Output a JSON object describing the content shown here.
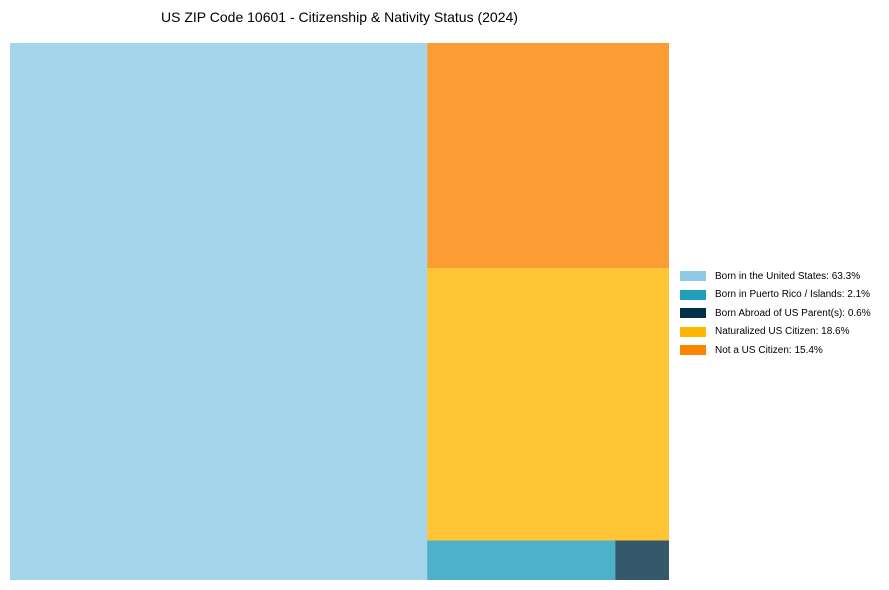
{
  "chart_data": {
    "type": "treemap",
    "title": "US ZIP Code 10601 - Citizenship & Nativity Status (2024)",
    "unit": "%",
    "items": [
      {
        "label": "Born in the United States",
        "value": 63.3,
        "color": "#8ecae6",
        "legend": "Born in the United States: 63.3%"
      },
      {
        "label": "Born in Puerto Rico / Islands",
        "value": 2.1,
        "color": "#219ebc",
        "legend": "Born in Puerto Rico / Islands: 2.1%"
      },
      {
        "label": "Born Abroad of US Parent(s)",
        "value": 0.6,
        "color": "#023047",
        "legend": "Born Abroad of US Parent(s): 0.6%"
      },
      {
        "label": "Naturalized US Citizen",
        "value": 18.6,
        "color": "#ffb703",
        "legend": "Naturalized US Citizen: 18.6%"
      },
      {
        "label": "Not a US Citizen",
        "value": 15.4,
        "color": "#fb8500",
        "legend": "Not a US Citizen: 15.4%"
      }
    ],
    "legend_position": "right"
  }
}
